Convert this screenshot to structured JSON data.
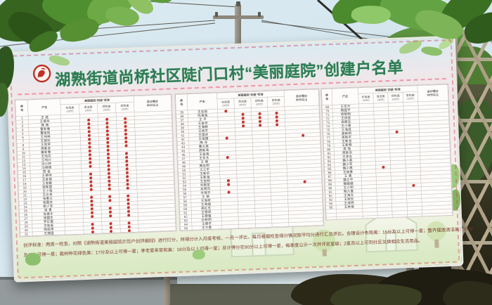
{
  "board": {
    "title": "湖熟街道尚桥社区陡门口村“美丽庭院”创建户名单",
    "logo_icon": "women-federation-logo",
    "footer_line1": "创评标准：两周一检查，对照《湖熟街道美丽庭院示范户创评细则》进行打分，所得分计入月度考核，一月一评比，每月根据检查得分情况取平均分进行汇总评比。合理设计布局美：15分及以上可得一星；整齐摆放清洁美：37分",
    "footer_line2": "及以上可得一星；栽树种花绿色美：17分及以上可得一星；孝老爱亲家和美：18分及以上可得一星；总计得分在90分以上可得一星，每季度公示一次并评定星级；2星及以上可到社区兑换相应生活用品。",
    "table": {
      "seq_header": "序号",
      "owner_header": "户主",
      "group_header": "美丽庭院“四星”标准",
      "criteria": [
        {
          "label": "布局美",
          "max": "(20分)"
        },
        {
          "label": "清洁美",
          "max": "(40分)"
        },
        {
          "label": "绿色美",
          "max": "(20分)"
        },
        {
          "label": "家和美",
          "max": "(20分)"
        }
      ],
      "total_header": "总计得分",
      "total_sub": "90分以上",
      "mark_meaning": "red-star-stamp",
      "mark_color": "#c9342e",
      "panels": [
        {
          "rows": [
            [
              1,
              "王 斌",
              "00000"
            ],
            [
              2,
              "王德兵",
              "01110"
            ],
            [
              3,
              "杨 倩",
              "01110"
            ],
            [
              4,
              "曹新春",
              "01110"
            ],
            [
              5,
              "曹娅娅",
              "01110"
            ],
            [
              6,
              "王纯林",
              "01110"
            ],
            [
              7,
              "王丽珍",
              "01110"
            ],
            [
              8,
              "王雨荣",
              "01110"
            ],
            [
              9,
              "高新会",
              "01110"
            ],
            [
              10,
              "戴新春",
              "01100"
            ],
            [
              11,
              "王纯兵",
              "01110"
            ],
            [
              12,
              "王纯兴",
              "01110"
            ],
            [
              13,
              "冯小林",
              "01110"
            ],
            [
              14,
              "冯德顺",
              "01110"
            ],
            [
              15,
              "周 俊",
              "00110"
            ],
            [
              16,
              "王德祥",
              "01110"
            ],
            [
              17,
              "王金福",
              "01110"
            ],
            [
              18,
              "王金勤",
              "01110"
            ],
            [
              19,
              "张新国",
              "01110"
            ],
            [
              20,
              "王小海",
              "01110"
            ],
            [
              21,
              "王长贵",
              "00000"
            ],
            [
              22,
              "张惠兰",
              "01110"
            ],
            [
              23,
              "张国庆",
              "01110"
            ],
            [
              24,
              "杨少军",
              "01010"
            ],
            [
              25,
              "张 勇",
              "01110"
            ],
            [
              26,
              "张德才",
              "01110"
            ],
            [
              27,
              "张国生",
              "01110"
            ],
            [
              28,
              "罗红霞",
              "00000"
            ],
            [
              29,
              "王桂英",
              "01110"
            ],
            [
              30,
              "陶丽萍",
              "01110"
            ],
            [
              31,
              "王建国",
              "01110"
            ],
            [
              32,
              "王国兴",
              "01110"
            ],
            [
              33,
              "王永井",
              "01110"
            ],
            [
              34,
              "王彩霞",
              "01110"
            ]
          ]
        },
        {
          "rows": [
            [
              35,
              "王志刚",
              "10000"
            ],
            [
              36,
              "陈漓海",
              "01110"
            ],
            [
              37,
              "王 平",
              "01110"
            ],
            [
              38,
              "王金华",
              "01110"
            ],
            [
              39,
              "王海鹏",
              "01110"
            ],
            [
              40,
              "王纯平",
              "00000"
            ],
            [
              41,
              "王国庆",
              "00000"
            ],
            [
              42,
              "王祖国",
              "10001"
            ],
            [
              43,
              "陶 洋",
              "00000"
            ],
            [
              44,
              "曹兰英",
              "00000"
            ],
            [
              45,
              "高新海",
              "00000"
            ],
            [
              46,
              "王金海",
              "00000"
            ],
            [
              47,
              "王永生",
              "10000"
            ],
            [
              48,
              "王 明",
              "00000"
            ],
            [
              49,
              "陶志明",
              "00000"
            ],
            [
              50,
              "王江平",
              "00000"
            ],
            [
              51,
              "王新轩",
              "00000"
            ],
            [
              52,
              "王新海",
              "00000"
            ],
            [
              53,
              "王金明",
              "10000"
            ],
            [
              54,
              "刘新军",
              "10001"
            ],
            [
              55,
              "余明凤",
              "00000"
            ],
            [
              56,
              "许海平",
              "10000"
            ],
            [
              57,
              "王 娟",
              "00000"
            ],
            [
              58,
              "王海荣",
              "00000"
            ],
            [
              59,
              "王海福",
              "00000"
            ],
            [
              60,
              "高红玉",
              "00000"
            ],
            [
              61,
              "王德保",
              "00000"
            ],
            [
              62,
              "王德强",
              "00000"
            ],
            [
              63,
              "孙新明",
              "00000"
            ],
            [
              64,
              "王德平",
              "00000"
            ],
            [
              65,
              "王大勇",
              "00000"
            ],
            [
              66,
              "王德林",
              "00000"
            ],
            [
              67,
              "王海林",
              "00000"
            ],
            [
              68,
              "王明生",
              "00000"
            ]
          ]
        },
        {
          "rows": [
            [
              69,
              "王东升",
              "00000"
            ],
            [
              70,
              "杨国平",
              "00000"
            ],
            [
              71,
              "杨新明",
              "00000"
            ],
            [
              72,
              "王保堂",
              "00000"
            ],
            [
              73,
              "高殿生",
              "00000"
            ],
            [
              74,
              "王小勇",
              "00000"
            ],
            [
              75,
              "王海成",
              "00000"
            ],
            [
              76,
              "高新明",
              "00100"
            ],
            [
              77,
              "高新平",
              "00000"
            ],
            [
              78,
              "王新宝",
              "00000"
            ],
            [
              79,
              "王新明",
              "00000"
            ],
            [
              80,
              "周 强",
              "00000"
            ],
            [
              81,
              "周新洪",
              "00000"
            ],
            [
              82,
              "王承志",
              "00000"
            ],
            [
              83,
              "魏小英",
              "00000"
            ],
            [
              84,
              "魏小军",
              "00000"
            ],
            [
              85,
              "魏小根",
              "01000"
            ],
            [
              86,
              "王晓春",
              "00000"
            ],
            [
              87,
              "王 勇",
              "00000"
            ],
            [
              88,
              "魏立平",
              "00000"
            ],
            [
              89,
              "魏娟娟",
              "00000"
            ],
            [
              90,
              "王小明",
              "00010"
            ],
            [
              91,
              "陶六喜",
              "00000"
            ],
            [
              92,
              "王海兵",
              "00000"
            ],
            [
              93,
              "王桂珍",
              "00000"
            ],
            [
              94,
              "王成明",
              "00000"
            ],
            [
              95,
              "王林保",
              "00000"
            ],
            [
              "",
              "",
              "00000"
            ],
            [
              "",
              "",
              "00000"
            ],
            [
              "",
              "",
              "00000"
            ],
            [
              "",
              "",
              "00000"
            ],
            [
              "",
              "",
              "00000"
            ]
          ]
        }
      ]
    }
  }
}
